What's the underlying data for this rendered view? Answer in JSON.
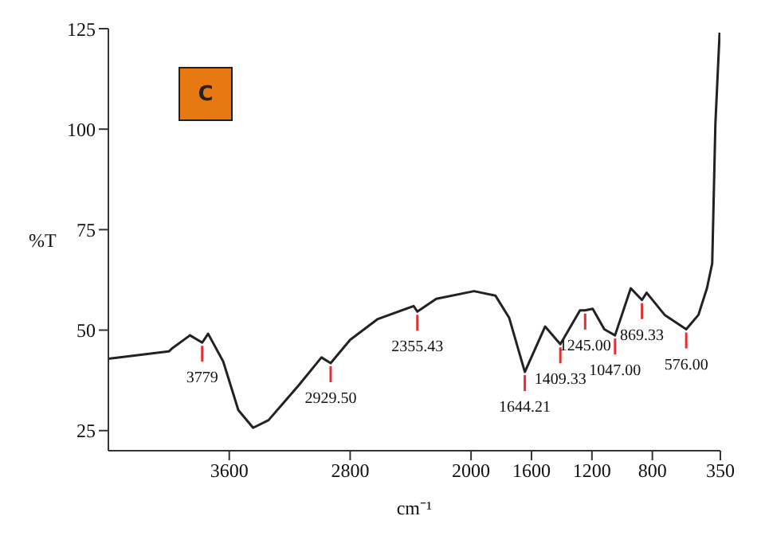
{
  "chart_data": {
    "type": "line",
    "xlabel": "cm⁻¹",
    "ylabel": "%T",
    "xlim": [
      4400,
      350
    ],
    "xticks": [
      3600,
      2800,
      2000,
      1600,
      1200,
      800,
      350
    ],
    "ylim": [
      20,
      125
    ],
    "yticks": [
      25,
      50,
      75,
      100,
      125
    ],
    "grid": false,
    "legend": false,
    "marker": "none",
    "x": [
      4400,
      4000,
      3980,
      3860,
      3779,
      3740,
      3640,
      3540,
      3442,
      3340,
      3140,
      2990,
      2929,
      2800,
      2620,
      2380,
      2355,
      2230,
      1980,
      1839,
      1748,
      1644,
      1510,
      1409,
      1279,
      1245,
      1195,
      1118,
      1047,
      943,
      869,
      838,
      719,
      576,
      495,
      439,
      404,
      383,
      355
    ],
    "series": [
      {
        "color": "#222222",
        "values": [
          42.9,
          44.7,
          45.4,
          48.7,
          46.9,
          49.1,
          42.2,
          30.1,
          25.7,
          27.6,
          36.3,
          43.2,
          41.8,
          47.6,
          52.7,
          56,
          54.6,
          57.8,
          59.7,
          58.6,
          53.1,
          39.6,
          50.9,
          46.5,
          54.9,
          54.9,
          55.3,
          50.2,
          48.7,
          60.4,
          57.5,
          59.3,
          53.8,
          50.2,
          53.8,
          60.4,
          66.6,
          101.3,
          124
        ]
      }
    ],
    "annotations": [
      "C",
      {
        "text": "3779",
        "x": 3779,
        "y": 46.9
      },
      {
        "text": "2929.50",
        "x": 2929,
        "y": 41.8
      },
      {
        "text": "2355.43",
        "x": 2355,
        "y": 54.6
      },
      {
        "text": "1644.21",
        "x": 1644,
        "y": 39.6
      },
      {
        "text": "1409.33",
        "x": 1409,
        "y": 46.5
      },
      {
        "text": "1245.00",
        "x": 1245,
        "y": 54.9
      },
      {
        "text": "1047.00",
        "x": 1047,
        "y": 48.7
      },
      {
        "text": "869.33",
        "x": 869,
        "y": 57.5
      },
      {
        "text": "576.00",
        "x": 576,
        "y": 50.2
      }
    ]
  }
}
